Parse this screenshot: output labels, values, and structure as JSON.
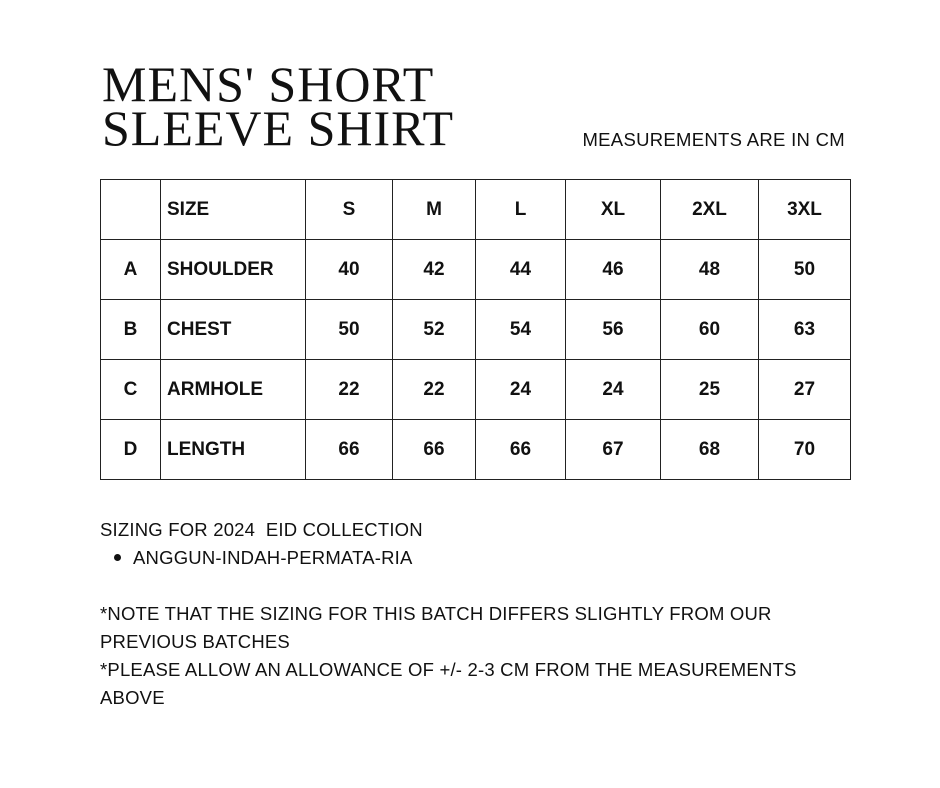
{
  "title": {
    "line1": "MENS' SHORT",
    "line2": "SLEEVE SHIRT"
  },
  "units_note": "MEASUREMENTS ARE IN CM",
  "table": {
    "header": [
      "",
      "SIZE",
      "S",
      "M",
      "L",
      "XL",
      "2XL",
      "3XL"
    ],
    "rows": [
      [
        "A",
        "SHOULDER",
        "40",
        "42",
        "44",
        "46",
        "48",
        "50"
      ],
      [
        "B",
        "CHEST",
        "50",
        "52",
        "54",
        "56",
        "60",
        "63"
      ],
      [
        "C",
        "ARMHOLE",
        "22",
        "22",
        "24",
        "24",
        "25",
        "27"
      ],
      [
        "D",
        "LENGTH",
        "66",
        "66",
        "66",
        "67",
        "68",
        "70"
      ]
    ]
  },
  "notes": {
    "collection": "SIZING FOR 2024  EID COLLECTION",
    "bullets": [
      "ANGGUN-INDAH-PERMATA-RIA"
    ],
    "note1": "*NOTE THAT THE SIZING FOR THIS BATCH DIFFERS SLIGHTLY FROM OUR PREVIOUS BATCHES",
    "note2": "*PLEASE ALLOW AN ALLOWANCE OF +/- 2-3 CM FROM THE MEASUREMENTS ABOVE"
  }
}
